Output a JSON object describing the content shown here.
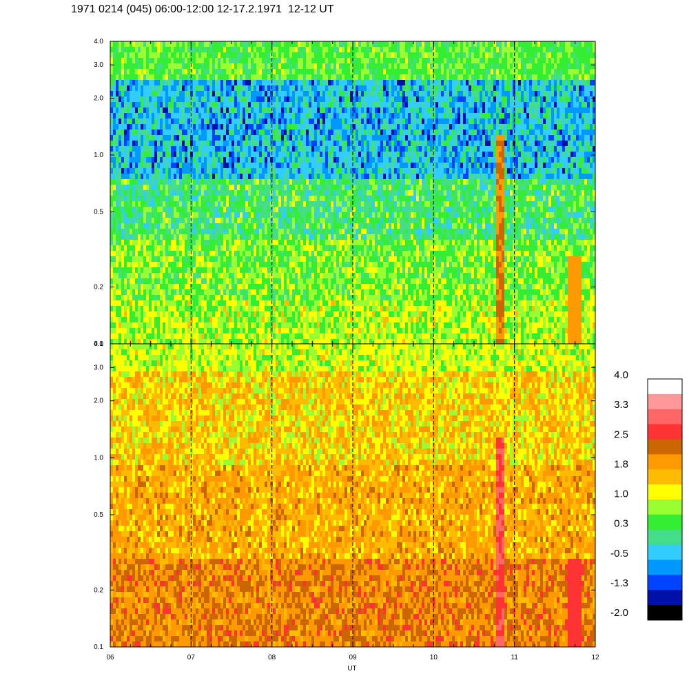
{
  "title": "1971 0214 (045) 06:00-12:00 12-17.2.1971  12-12 UT",
  "chart_data": [
    {
      "type": "heatmap",
      "panel": "upper",
      "x_label": "",
      "x_ticks": [
        "06",
        "07",
        "08",
        "09",
        "10",
        "11",
        "12"
      ],
      "y_scale": "log",
      "y_range": [
        0.1,
        4.0
      ],
      "y_ticks": [
        {
          "value": 0.1,
          "label": "0.1"
        },
        {
          "value": 0.2,
          "label": "0.2"
        },
        {
          "value": 0.5,
          "label": "0.5"
        },
        {
          "value": 1.0,
          "label": "1.0"
        },
        {
          "value": 2.0,
          "label": "2.0"
        },
        {
          "value": 3.0,
          "label": "3.0"
        },
        {
          "value": 4.0,
          "label": "4.0"
        }
      ],
      "dashed_hour_markers": [
        "07",
        "08",
        "09",
        "10",
        "11"
      ],
      "dominant_levels_by_frequency": [
        {
          "band": "0.1-0.3",
          "level": "green / yellow"
        },
        {
          "band": "0.3-0.8",
          "level": "green"
        },
        {
          "band": "0.8-3.0",
          "level": "blue / cyan"
        },
        {
          "band": "3.0-4.0",
          "level": "green"
        }
      ],
      "features": [
        {
          "x": "10.8",
          "description": "narrow orange/red vertical stripe"
        },
        {
          "x": "11.75",
          "description": "orange stripe at low frequency"
        }
      ]
    },
    {
      "type": "heatmap",
      "panel": "lower",
      "x_label": "UT",
      "x_ticks": [
        "06",
        "07",
        "08",
        "09",
        "10",
        "11",
        "12"
      ],
      "y_scale": "log",
      "y_range": [
        0.1,
        4.0
      ],
      "y_ticks": [
        {
          "value": 0.1,
          "label": "0.1"
        },
        {
          "value": 0.2,
          "label": "0.2"
        },
        {
          "value": 0.5,
          "label": "0.5"
        },
        {
          "value": 1.0,
          "label": "1.0"
        },
        {
          "value": 2.0,
          "label": "2.0"
        },
        {
          "value": 3.0,
          "label": "3.0"
        },
        {
          "value": 4.0,
          "label": "4.0"
        }
      ],
      "dashed_hour_markers": [
        "07",
        "08",
        "09",
        "10",
        "11"
      ],
      "dominant_levels_by_frequency": [
        {
          "band": "0.1-0.3",
          "level": "orange / dark orange"
        },
        {
          "band": "0.3-1.5",
          "level": "orange / yellow"
        },
        {
          "band": "1.5-3.0",
          "level": "yellow / orange"
        },
        {
          "band": "3.0-4.0",
          "level": "yellow / green"
        }
      ],
      "features": [
        {
          "x": "10.8",
          "description": "red/pink vertical stripe"
        },
        {
          "x": "11.7",
          "description": "red stripe at low frequency"
        }
      ]
    }
  ],
  "colorbar": {
    "tick_labels": [
      "4.0",
      "3.3",
      "2.5",
      "1.8",
      "1.0",
      "0.3",
      "-0.5",
      "-1.3",
      "-2.0"
    ],
    "colors_top_to_bottom": [
      "#ffffff",
      "#ff9999",
      "#ff6666",
      "#ff3333",
      "#cc6600",
      "#ff9900",
      "#ffbb00",
      "#ffff00",
      "#99ff33",
      "#33ee33",
      "#44dd88",
      "#33ccff",
      "#0099ff",
      "#0044ff",
      "#0011aa",
      "#000000"
    ]
  },
  "palette": {
    "black": "#000000",
    "navy": "#0011aa",
    "blue": "#0044ff",
    "lightblue": "#0099ff",
    "cyan": "#33ccff",
    "teal": "#44dd88",
    "green": "#33ee33",
    "lime": "#99ff33",
    "yellow": "#ffff00",
    "gold": "#ffbb00",
    "orange": "#ff9900",
    "darkorange": "#cc6600",
    "red": "#ff3333",
    "salmon": "#ff6666",
    "pink": "#ff9999"
  }
}
